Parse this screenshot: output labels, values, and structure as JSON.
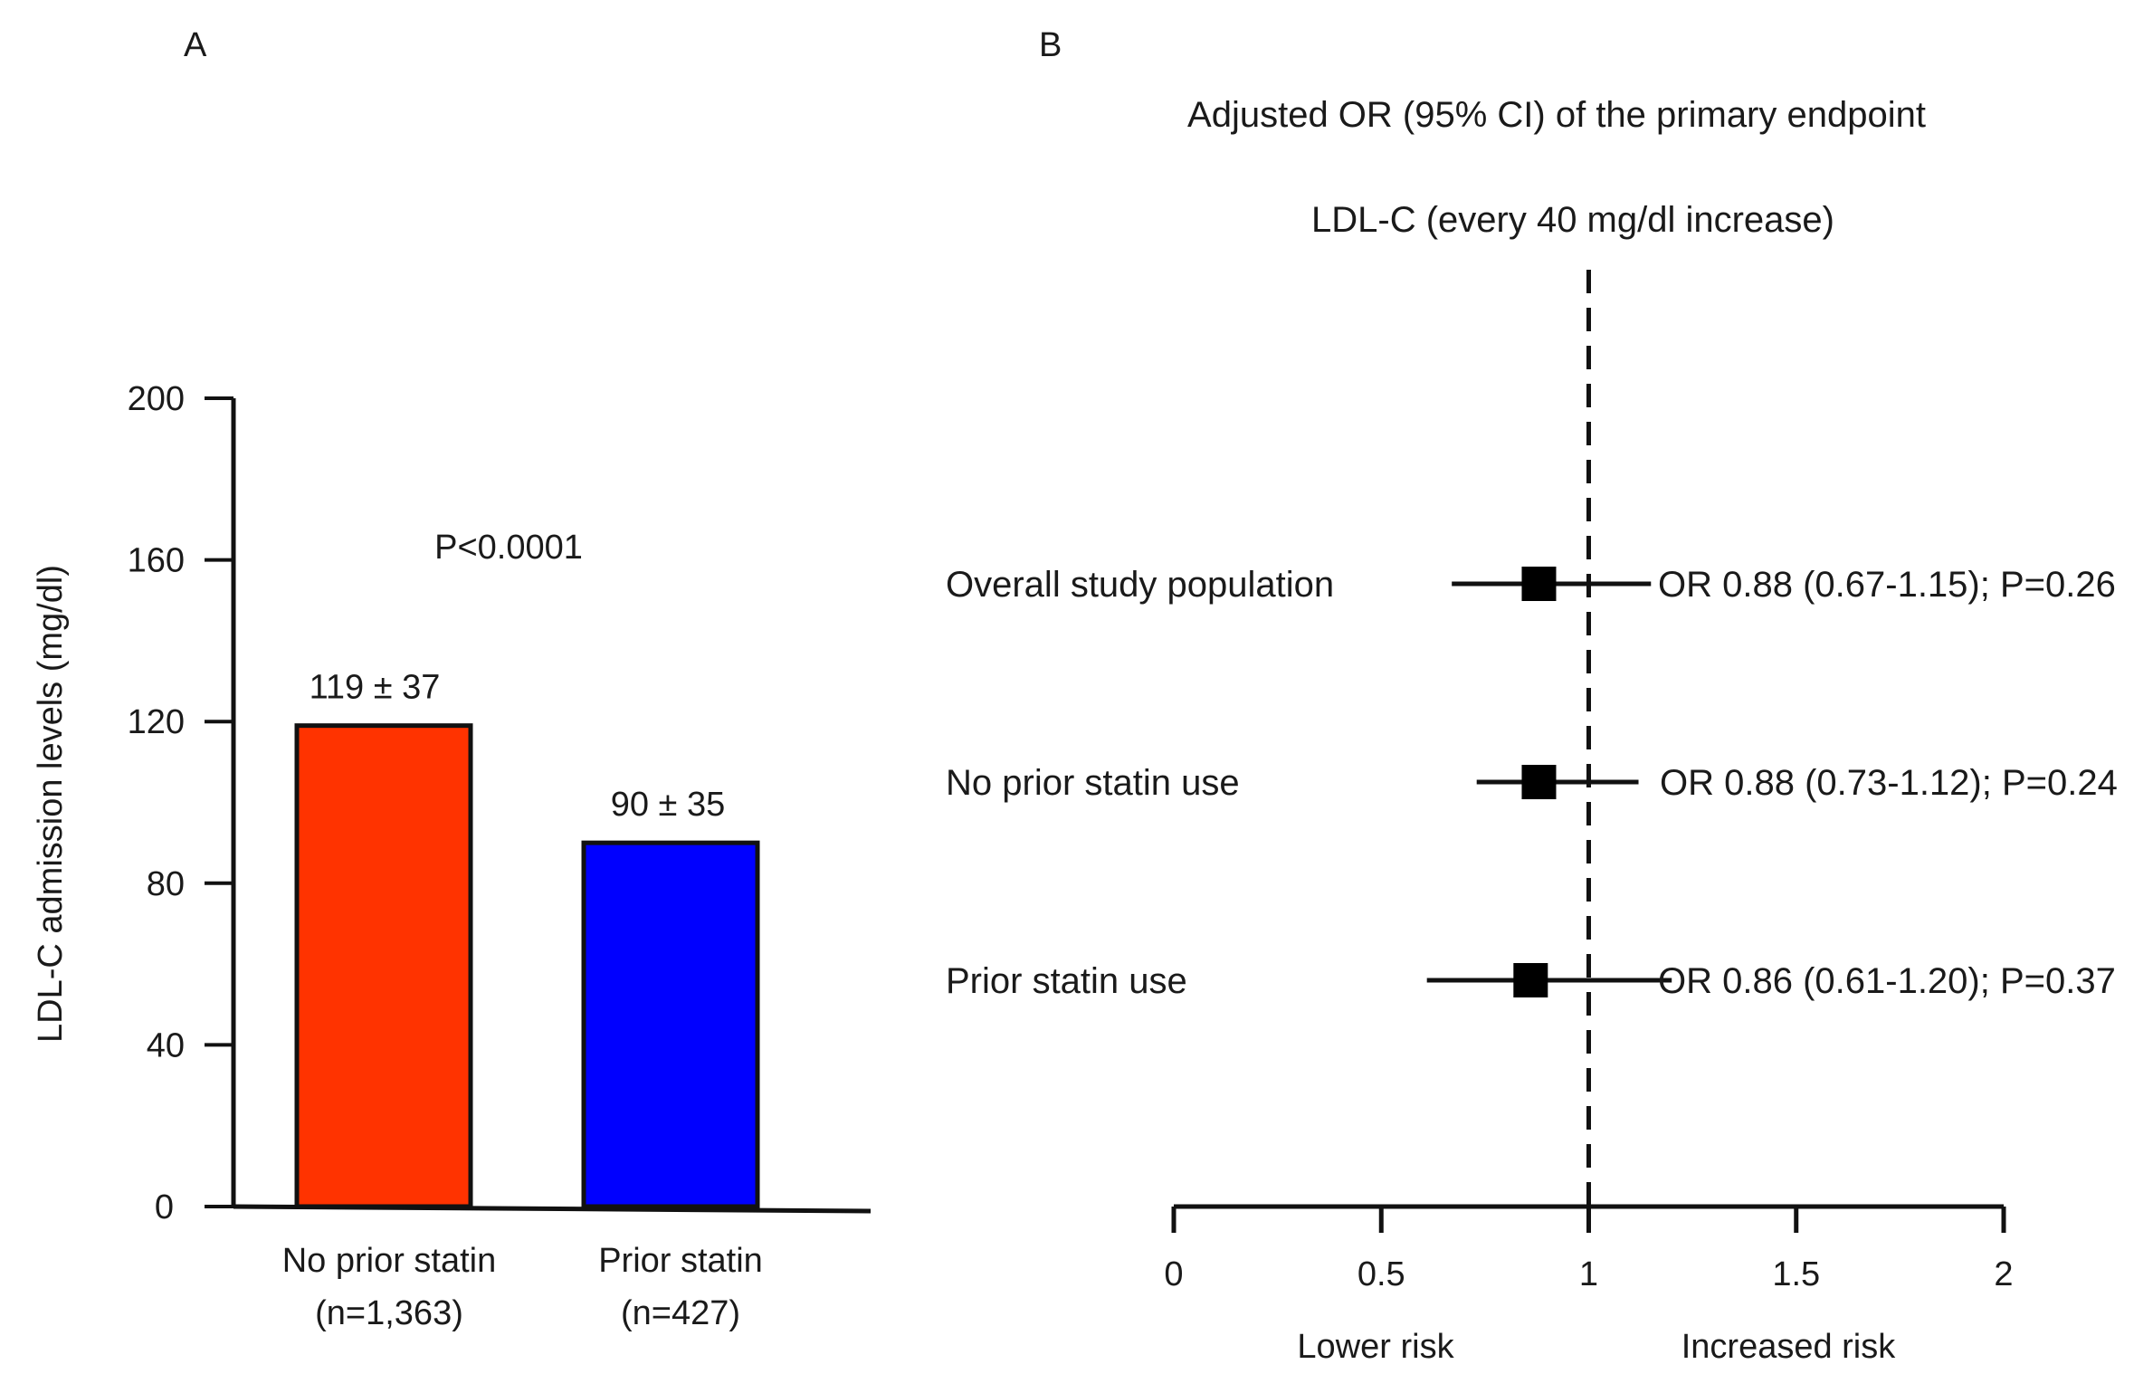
{
  "chart_data": [
    {
      "panel_label": "A",
      "type": "bar",
      "title": "",
      "xlabel": "",
      "ylabel": "LDL-C admission levels (mg/dl)",
      "ylim": [
        0,
        200
      ],
      "yticks": [
        "0",
        "40",
        "80",
        "120",
        "160",
        "200"
      ],
      "categories": [
        "No prior statin",
        "Prior statin"
      ],
      "category_counts": [
        "(n=1,363)",
        "(n=427)"
      ],
      "values": [
        119,
        90
      ],
      "data_labels": [
        "119 ± 37",
        "90 ± 35"
      ],
      "colors": [
        "#ff3300",
        "#0000ff"
      ],
      "annotation": "P<0.0001",
      "grid": false
    },
    {
      "panel_label": "B",
      "type": "forest",
      "title": "Adjusted OR (95% CI) of the primary endpoint",
      "subtitle": "LDL-C (every 40 mg/dl increase)",
      "xlim": [
        0,
        2
      ],
      "xticks": [
        "0",
        "0.5",
        "1",
        "1.5",
        "2"
      ],
      "reference_line": 1,
      "xlabel_left": "Lower risk",
      "xlabel_right": "Increased risk",
      "rows": [
        {
          "label": "Overall study population",
          "or": 0.88,
          "lo": 0.67,
          "hi": 1.15,
          "text": "OR 0.88 (0.67-1.15); P=0.26"
        },
        {
          "label": "No prior statin use",
          "or": 0.88,
          "lo": 0.73,
          "hi": 1.12,
          "text": "OR 0.88 (0.73-1.12); P=0.24"
        },
        {
          "label": "Prior statin use",
          "or": 0.86,
          "lo": 0.61,
          "hi": 1.2,
          "text": "OR 0.86 (0.61-1.20); P=0.37"
        }
      ],
      "grid": false
    }
  ]
}
